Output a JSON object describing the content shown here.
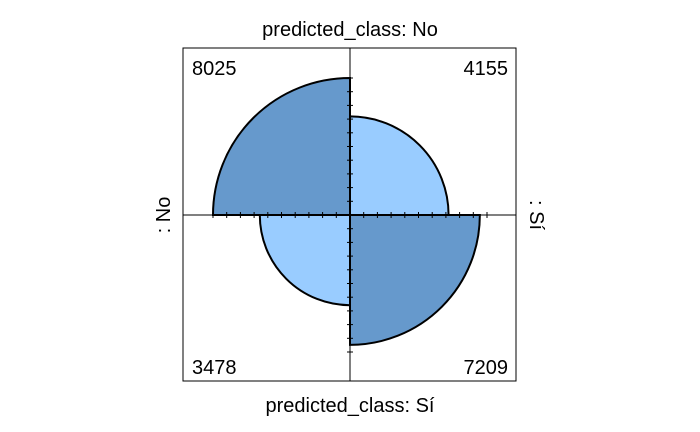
{
  "chart_data": {
    "type": "fourfold",
    "title": "",
    "top_label": "predicted_class: No",
    "bottom_label": "predicted_class: Sí",
    "left_label": ": No",
    "right_label": ": Sí",
    "cells": [
      {
        "quadrant": "top-left",
        "row": "No",
        "column": "No",
        "value": 8025,
        "shade": "dark"
      },
      {
        "quadrant": "top-right",
        "row": "No",
        "column": "Sí",
        "value": 4155,
        "shade": "light"
      },
      {
        "quadrant": "bottom-left",
        "row": "Sí",
        "column": "No",
        "value": 3478,
        "shade": "light"
      },
      {
        "quadrant": "bottom-right",
        "row": "Sí",
        "column": "Sí",
        "value": 7209,
        "shade": "dark"
      }
    ],
    "grid": false,
    "legend": "none",
    "colors": {
      "dark": "#6699CC",
      "light": "#99CCFF",
      "outline": "#000000"
    }
  }
}
